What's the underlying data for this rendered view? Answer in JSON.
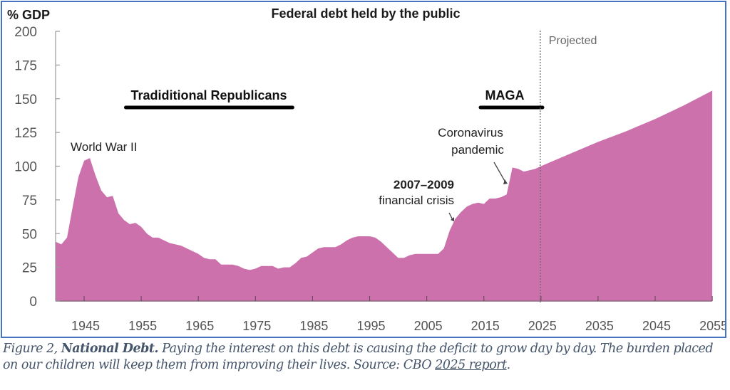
{
  "chart_data": {
    "type": "area",
    "title": "Federal debt held by the public",
    "ylabel": "% GDP",
    "xlabel": "",
    "ylim": [
      0,
      200
    ],
    "xlim": [
      1940,
      2055
    ],
    "yticks": [
      0,
      25,
      50,
      75,
      100,
      125,
      150,
      175,
      200
    ],
    "xticks": [
      1945,
      1955,
      1965,
      1975,
      1985,
      1995,
      2005,
      2015,
      2025,
      2035,
      2045,
      2055
    ],
    "grid": false,
    "fill_color": "#cc71ab",
    "series": [
      {
        "name": "Federal debt held by the public (% GDP)",
        "x": [
          1940,
          1941,
          1942,
          1943,
          1944,
          1945,
          1946,
          1947,
          1948,
          1949,
          1950,
          1951,
          1952,
          1953,
          1954,
          1955,
          1956,
          1957,
          1958,
          1959,
          1960,
          1961,
          1962,
          1963,
          1964,
          1965,
          1966,
          1967,
          1968,
          1969,
          1970,
          1971,
          1972,
          1973,
          1974,
          1975,
          1976,
          1977,
          1978,
          1979,
          1980,
          1981,
          1982,
          1983,
          1984,
          1985,
          1986,
          1987,
          1988,
          1989,
          1990,
          1991,
          1992,
          1993,
          1994,
          1995,
          1996,
          1997,
          1998,
          1999,
          2000,
          2001,
          2002,
          2003,
          2004,
          2005,
          2006,
          2007,
          2008,
          2009,
          2010,
          2011,
          2012,
          2013,
          2014,
          2015,
          2016,
          2017,
          2018,
          2019,
          2020,
          2021,
          2022,
          2023,
          2024,
          2025,
          2030,
          2035,
          2040,
          2045,
          2050,
          2055
        ],
        "y": [
          44,
          42,
          47,
          70,
          92,
          104,
          106,
          93,
          82,
          77,
          78,
          65,
          60,
          57,
          58,
          55,
          50,
          47,
          47,
          45,
          43,
          42,
          41,
          39,
          37,
          35,
          32,
          31,
          31,
          27,
          27,
          27,
          26,
          24,
          23,
          24,
          26,
          26,
          26,
          24,
          25,
          25,
          28,
          32,
          33,
          36,
          39,
          40,
          40,
          40,
          42,
          45,
          47,
          48,
          48,
          48,
          47,
          44,
          40,
          36,
          32,
          32,
          34,
          35,
          35,
          35,
          35,
          35,
          39,
          52,
          61,
          66,
          70,
          72,
          73,
          72,
          76,
          76,
          77,
          79,
          99,
          98,
          96,
          97,
          98,
          100,
          109,
          118,
          126,
          135,
          145,
          156
        ]
      }
    ],
    "annotations": [
      {
        "text": "World War II",
        "x": 1946,
        "y": 115
      },
      {
        "text": "Tradiditional Republicans",
        "x_range": [
          1953,
          1981
        ],
        "y": 145,
        "underline": true
      },
      {
        "text": "MAGA",
        "x_range": [
          2014,
          2024
        ],
        "y": 145,
        "underline": true
      },
      {
        "text": "Coronavirus pandemic",
        "x": 2018,
        "y": 122,
        "arrow_to": [
          2019.5,
          80
        ]
      },
      {
        "text": "2007–2009 financial crisis",
        "x": 2006,
        "y": 75,
        "arrow_to": [
          2009,
          58
        ]
      },
      {
        "text": "Projected",
        "x": 2025,
        "y": 195,
        "divider_year": 2025
      }
    ]
  },
  "caption": {
    "prefix": "Figure 2, ",
    "bold": "National Debt.",
    "body": " Paying the interest on this debt is causing the deficit to grow day by day.  The burden placed on our children will keep them from improving their lives. Source: CBO ",
    "link": "2025 report",
    "suffix": "."
  }
}
